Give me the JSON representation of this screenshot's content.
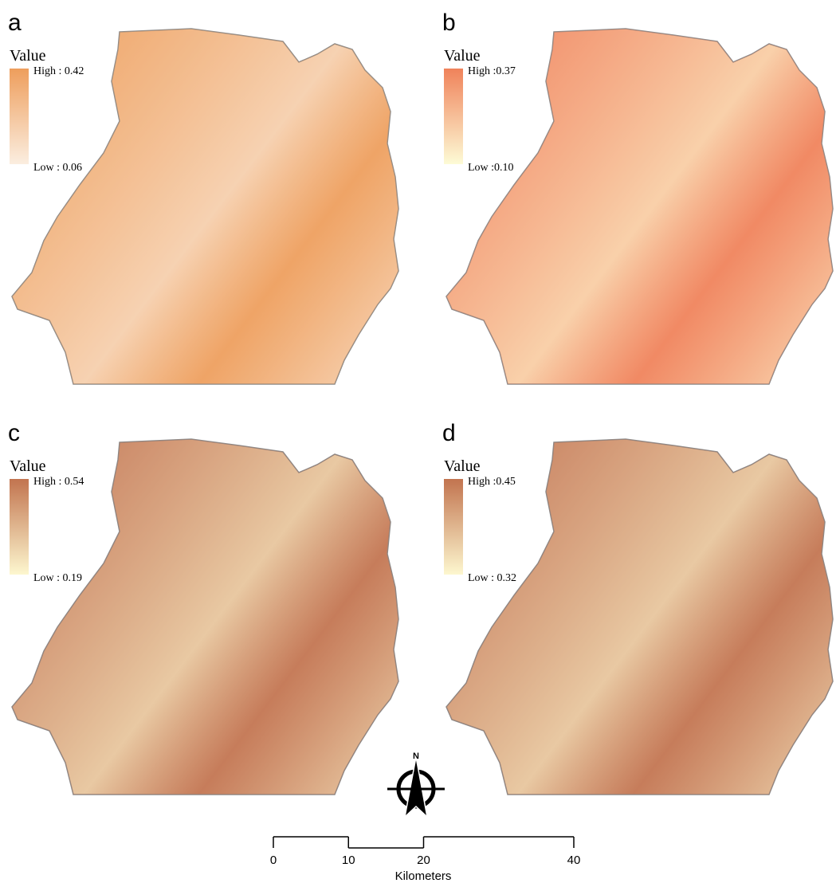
{
  "panels": [
    {
      "label": "a",
      "legend_title": "Value",
      "high": "High : 0.42",
      "low": "Low : 0.06",
      "high_color": "#ee9e5c",
      "low_color": "#fbeee0"
    },
    {
      "label": "b",
      "legend_title": "Value",
      "high": "High :0.37",
      "low": "Low :0.10",
      "high_color": "#f0825a",
      "low_color": "#fdfbd6"
    },
    {
      "label": "c",
      "legend_title": "Value",
      "high": "High : 0.54",
      "low": "Low : 0.19",
      "high_color": "#c2744f",
      "low_color": "#fdf7cf"
    },
    {
      "label": "d",
      "legend_title": "Value",
      "high": "High :0.45",
      "low": "Low : 0.32",
      "high_color": "#c2744f",
      "low_color": "#fdf7cf"
    }
  ],
  "compass": "N",
  "scale_bar": {
    "ticks": [
      0,
      10,
      20,
      40
    ],
    "unit": "Kilometers"
  }
}
